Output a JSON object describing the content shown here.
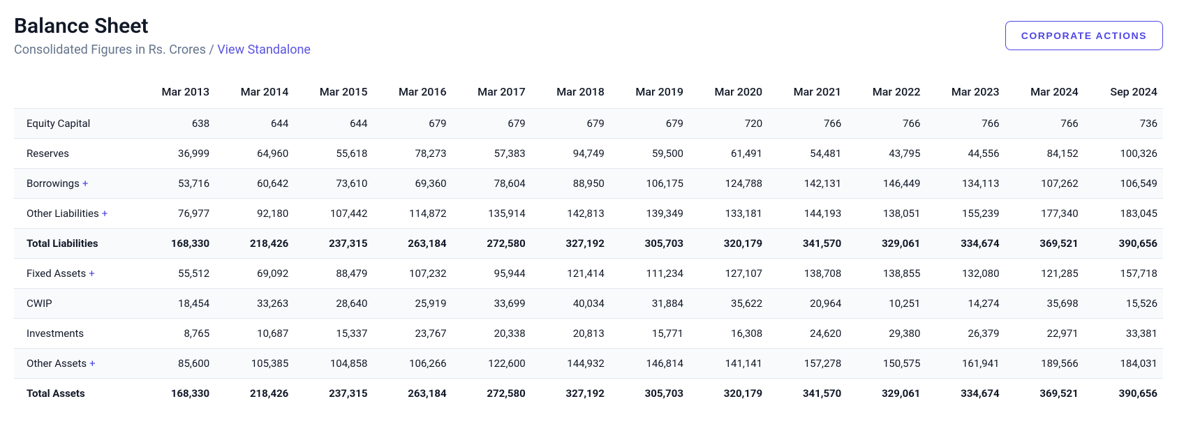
{
  "header": {
    "title": "Balance Sheet",
    "sub_prefix": "Consolidated Figures in Rs. Crores / ",
    "sub_link": "View Standalone",
    "button": "Corporate Actions"
  },
  "table": {
    "columns": [
      "Mar 2013",
      "Mar 2014",
      "Mar 2015",
      "Mar 2016",
      "Mar 2017",
      "Mar 2018",
      "Mar 2019",
      "Mar 2020",
      "Mar 2021",
      "Mar 2022",
      "Mar 2023",
      "Mar 2024",
      "Sep 2024"
    ],
    "rows": [
      {
        "label": "Equity Capital",
        "expandable": false,
        "bold": false,
        "values": [
          "638",
          "644",
          "644",
          "679",
          "679",
          "679",
          "679",
          "720",
          "766",
          "766",
          "766",
          "766",
          "736"
        ]
      },
      {
        "label": "Reserves",
        "expandable": false,
        "bold": false,
        "values": [
          "36,999",
          "64,960",
          "55,618",
          "78,273",
          "57,383",
          "94,749",
          "59,500",
          "61,491",
          "54,481",
          "43,795",
          "44,556",
          "84,152",
          "100,326"
        ]
      },
      {
        "label": "Borrowings",
        "expandable": true,
        "bold": false,
        "values": [
          "53,716",
          "60,642",
          "73,610",
          "69,360",
          "78,604",
          "88,950",
          "106,175",
          "124,788",
          "142,131",
          "146,449",
          "134,113",
          "107,262",
          "106,549"
        ]
      },
      {
        "label": "Other Liabilities",
        "expandable": true,
        "bold": false,
        "values": [
          "76,977",
          "92,180",
          "107,442",
          "114,872",
          "135,914",
          "142,813",
          "139,349",
          "133,181",
          "144,193",
          "138,051",
          "155,239",
          "177,340",
          "183,045"
        ]
      },
      {
        "label": "Total Liabilities",
        "expandable": false,
        "bold": true,
        "thick_top": true,
        "values": [
          "168,330",
          "218,426",
          "237,315",
          "263,184",
          "272,580",
          "327,192",
          "305,703",
          "320,179",
          "341,570",
          "329,061",
          "334,674",
          "369,521",
          "390,656"
        ]
      },
      {
        "label": "Fixed Assets",
        "expandable": true,
        "bold": false,
        "values": [
          "55,512",
          "69,092",
          "88,479",
          "107,232",
          "95,944",
          "121,414",
          "111,234",
          "127,107",
          "138,708",
          "138,855",
          "132,080",
          "121,285",
          "157,718"
        ]
      },
      {
        "label": "CWIP",
        "expandable": false,
        "bold": false,
        "values": [
          "18,454",
          "33,263",
          "28,640",
          "25,919",
          "33,699",
          "40,034",
          "31,884",
          "35,622",
          "20,964",
          "10,251",
          "14,274",
          "35,698",
          "15,526"
        ]
      },
      {
        "label": "Investments",
        "expandable": false,
        "bold": false,
        "values": [
          "8,765",
          "10,687",
          "15,337",
          "23,767",
          "20,338",
          "20,813",
          "15,771",
          "16,308",
          "24,620",
          "29,380",
          "26,379",
          "22,971",
          "33,381"
        ]
      },
      {
        "label": "Other Assets",
        "expandable": true,
        "bold": false,
        "values": [
          "85,600",
          "105,385",
          "104,858",
          "106,266",
          "122,600",
          "144,932",
          "146,814",
          "141,141",
          "157,278",
          "150,575",
          "161,941",
          "189,566",
          "184,031"
        ]
      },
      {
        "label": "Total Assets",
        "expandable": false,
        "bold": true,
        "thick_top": true,
        "last": true,
        "values": [
          "168,330",
          "218,426",
          "237,315",
          "263,184",
          "272,580",
          "327,192",
          "305,703",
          "320,179",
          "341,570",
          "329,061",
          "334,674",
          "369,521",
          "390,656"
        ]
      }
    ]
  },
  "colors": {
    "accent": "#4f46e5",
    "text": "#111827",
    "muted": "#64748b",
    "row_alt": "#f8fafc",
    "border": "#e2e8f0"
  }
}
